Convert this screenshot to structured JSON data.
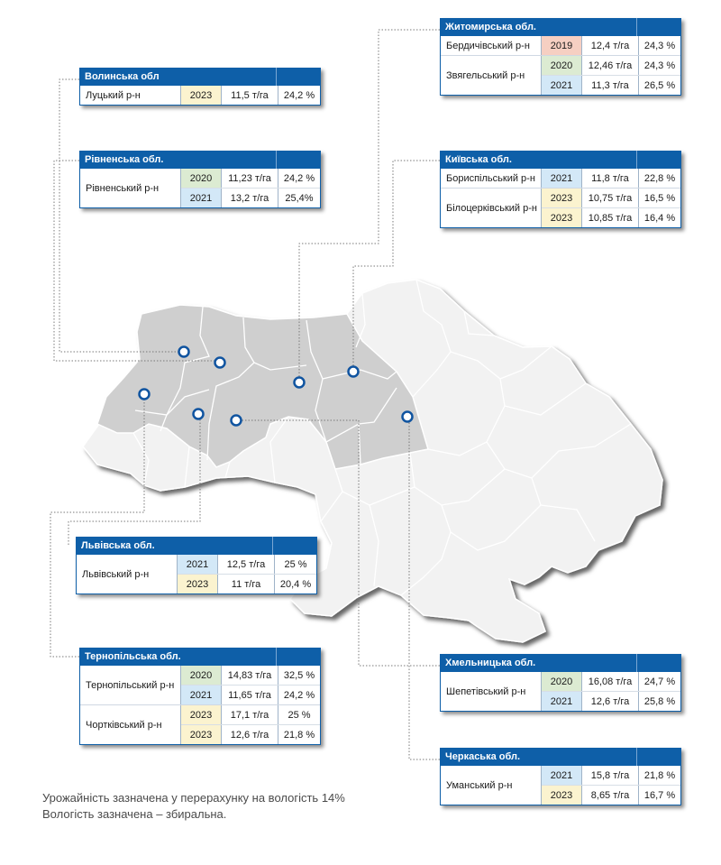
{
  "colors": {
    "header": "#0e5fa8",
    "highlighted_region": "#cfcfcf",
    "other_region": "#f2f2f2",
    "marker": "#1054a0",
    "year_2019": "#f6cfc2",
    "year_2020": "#dcebd2",
    "year_2021": "#d3e8f7",
    "year_2023": "#fbf3cf"
  },
  "regions": [
    {
      "id": "volyn",
      "title": "Волинська обл",
      "groups": [
        {
          "district": "Луцький р-н",
          "rows": [
            {
              "year": "2023",
              "yield": "11,5 т/га",
              "moisture": "24,2 %"
            }
          ]
        }
      ]
    },
    {
      "id": "rivne",
      "title": "Рівненська обл.",
      "groups": [
        {
          "district": "Рівненський р-н",
          "rows": [
            {
              "year": "2020",
              "yield": "11,23 т/га",
              "moisture": "24,2 %"
            },
            {
              "year": "2021",
              "yield": "13,2 т/га",
              "moisture": "25,4%"
            }
          ]
        }
      ]
    },
    {
      "id": "zhytomyr",
      "title": "Житомирська обл.",
      "groups": [
        {
          "district": "Бердичівський р-н",
          "rows": [
            {
              "year": "2019",
              "yield": "12,4 т/га",
              "moisture": "24,3 %"
            }
          ]
        },
        {
          "district": "Звягельський р-н",
          "rows": [
            {
              "year": "2020",
              "yield": "12,46 т/га",
              "moisture": "24,3 %"
            },
            {
              "year": "2021",
              "yield": "11,3 т/га",
              "moisture": "26,5 %"
            }
          ]
        }
      ]
    },
    {
      "id": "kyiv",
      "title": "Київська обл.",
      "groups": [
        {
          "district": "Бориспільський р-н",
          "rows": [
            {
              "year": "2021",
              "yield": "11,8 т/га",
              "moisture": "22,8 %"
            }
          ]
        },
        {
          "district": "Білоцерківський р-н",
          "rows": [
            {
              "year": "2023",
              "yield": "10,75 т/га",
              "moisture": "16,5 %"
            },
            {
              "year": "2023",
              "yield": "10,85 т/га",
              "moisture": "16,4 %"
            }
          ]
        }
      ]
    },
    {
      "id": "lviv",
      "title": "Львівська обл.",
      "groups": [
        {
          "district": "Львівський р-н",
          "rows": [
            {
              "year": "2021",
              "yield": "12,5 т/га",
              "moisture": "25 %"
            },
            {
              "year": "2023",
              "yield": "11 т/га",
              "moisture": "20,4 %"
            }
          ]
        }
      ]
    },
    {
      "id": "ternopil",
      "title": "Тернопільська обл.",
      "groups": [
        {
          "district": "Тернопільський р-н",
          "rows": [
            {
              "year": "2020",
              "yield": "14,83 т/га",
              "moisture": "32,5 %"
            },
            {
              "year": "2021",
              "yield": "11,65 т/га",
              "moisture": "24,2 %"
            }
          ]
        },
        {
          "district": "Чортківський р-н",
          "rows": [
            {
              "year": "2023",
              "yield": "17,1 т/га",
              "moisture": "25 %"
            },
            {
              "year": "2023",
              "yield": "12,6 т/га",
              "moisture": "21,8 %"
            }
          ]
        }
      ]
    },
    {
      "id": "khmelnytskyi",
      "title": "Хмельницька обл.",
      "groups": [
        {
          "district": "Шепетівський р-н",
          "rows": [
            {
              "year": "2020",
              "yield": "16,08 т/га",
              "moisture": "24,7 %"
            },
            {
              "year": "2021",
              "yield": "12,6 т/га",
              "moisture": "25,8 %"
            }
          ]
        }
      ]
    },
    {
      "id": "cherkasy",
      "title": "Черкаська обл.",
      "groups": [
        {
          "district": "Уманський р-н",
          "rows": [
            {
              "year": "2021",
              "yield": "15,8 т/га",
              "moisture": "21,8 %"
            },
            {
              "year": "2023",
              "yield": "8,65 т/га",
              "moisture": "16,7 %"
            }
          ]
        }
      ]
    }
  ],
  "footnote": {
    "line1": "Урожайність зазначена у перерахунку на вологість 14%",
    "line2": "Вологість зазначена – збиральна."
  }
}
